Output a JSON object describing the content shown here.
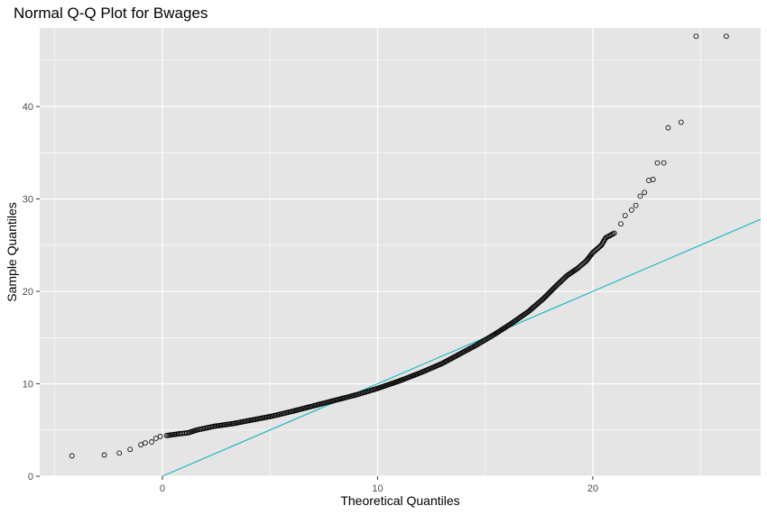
{
  "chart_data": {
    "type": "scatter",
    "title": "Normal Q-Q Plot for Bwages",
    "xlabel": "Theoretical Quantiles",
    "ylabel": "Sample Quantiles",
    "xlim": [
      -5.7,
      27.8
    ],
    "ylim": [
      0,
      48.5
    ],
    "x_ticks": [
      0,
      10,
      20
    ],
    "y_ticks": [
      0,
      10,
      20,
      30,
      40
    ],
    "grid": true,
    "background": "#e5e5e5",
    "grid_color": "#ffffff",
    "point_color": "#000000",
    "reference_line": {
      "color": "#22b8bd",
      "intercept": 0,
      "slope": 1
    },
    "scatter_points": {
      "x": [
        -4.2,
        -2.7,
        -2.0,
        -1.5,
        -1.0,
        -0.8,
        -0.5,
        -0.3,
        -0.1,
        0.2,
        0.5,
        0.8,
        1.2,
        1.6,
        2.4,
        3.3,
        4.2,
        5.1,
        6.0,
        7.0,
        8.0,
        9.0,
        10.0,
        11.0,
        12.0,
        13.0,
        13.8,
        14.6,
        15.4,
        16.2,
        17.0,
        17.7,
        18.3,
        18.8,
        19.3,
        19.7,
        20.0,
        20.4,
        20.6,
        21.0,
        21.3,
        21.5,
        21.8,
        22.0,
        22.2,
        22.4,
        22.6,
        22.8,
        23.0,
        23.3,
        23.5,
        24.1,
        24.8,
        26.2
      ],
      "y": [
        2.2,
        2.3,
        2.5,
        2.9,
        3.4,
        3.6,
        3.7,
        4.1,
        4.3,
        4.4,
        4.5,
        4.6,
        4.7,
        5.0,
        5.4,
        5.7,
        6.1,
        6.5,
        7.0,
        7.6,
        8.2,
        8.8,
        9.5,
        10.3,
        11.2,
        12.2,
        13.2,
        14.2,
        15.3,
        16.5,
        17.8,
        19.2,
        20.6,
        21.7,
        22.5,
        23.3,
        24.2,
        25.0,
        25.8,
        26.3,
        27.3,
        28.2,
        28.8,
        29.3,
        30.3,
        30.7,
        32.0,
        32.1,
        33.9,
        33.9,
        37.7,
        38.3,
        47.6,
        47.6
      ]
    }
  }
}
